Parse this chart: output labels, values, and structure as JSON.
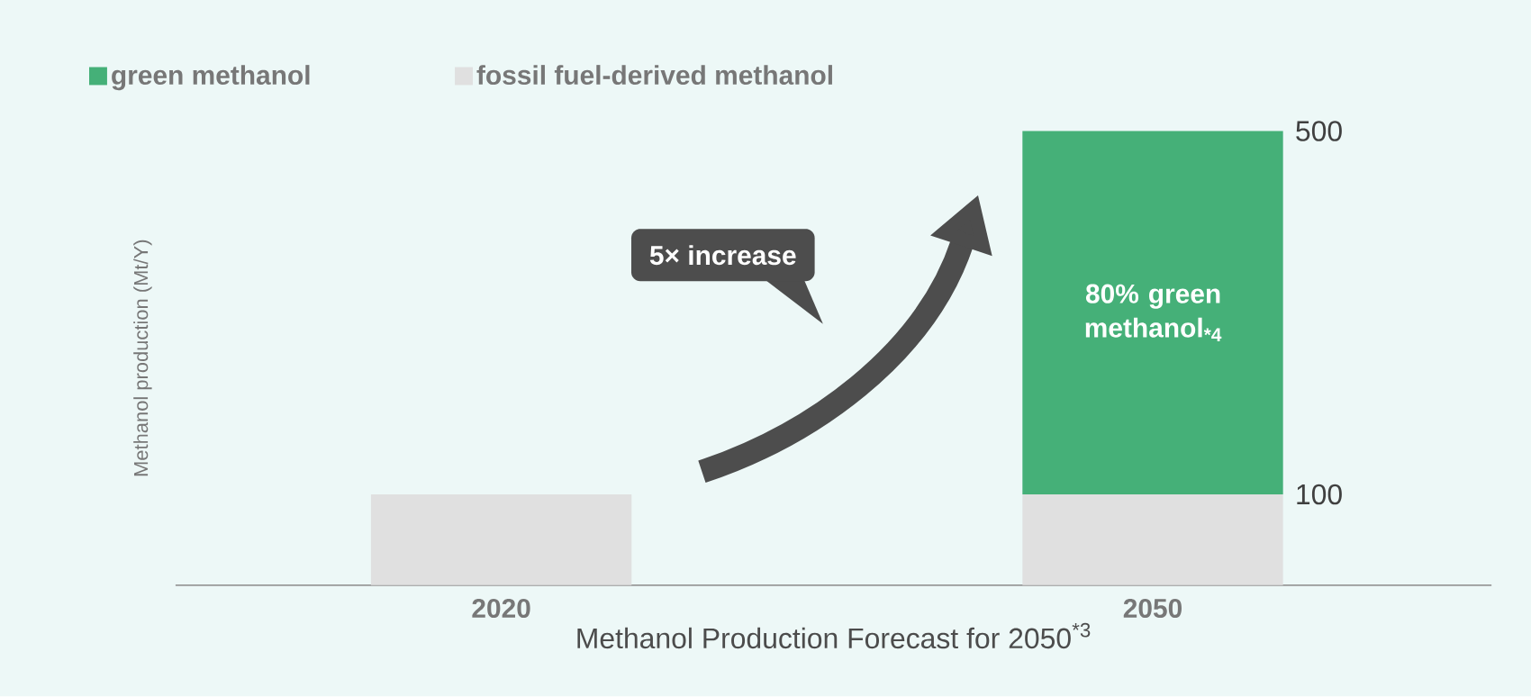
{
  "chart_data": {
    "type": "bar",
    "stacked": true,
    "categories": [
      "2020",
      "2050"
    ],
    "series": [
      {
        "name": "fossil fuel-derived methanol",
        "color": "#e0e0e0",
        "values": [
          100,
          100
        ]
      },
      {
        "name": "green methanol",
        "color": "#45b078",
        "values": [
          0,
          400
        ]
      }
    ],
    "ylim": [
      0,
      500
    ],
    "yticks": [
      100,
      500
    ],
    "xlabel": "Methanol Production Forecast for 2050$^{*3}$",
    "ylabel": "Methanol production (Mt/Y)",
    "legend": "top left",
    "annotations": [
      "5× increase",
      "80% green methanol$_{*4}$"
    ]
  }
}
